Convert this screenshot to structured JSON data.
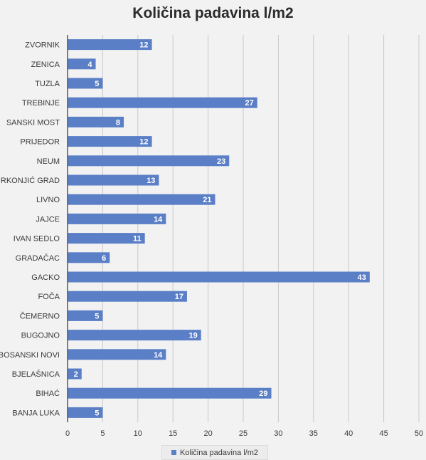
{
  "colors": {
    "bar": "#5b7fc7",
    "grid": "#c8c8c8",
    "axis": "#555555"
  },
  "chart_data": {
    "type": "bar",
    "orientation": "horizontal",
    "title": "Količina padavina l/m2",
    "categories": [
      "ZVORNIK",
      "ZENICA",
      "TUZLA",
      "TREBINJE",
      "SANSKI MOST",
      "PRIJEDOR",
      "NEUM",
      "MRKONJIĆ GRAD",
      "LIVNO",
      "JAJCE",
      "IVAN SEDLO",
      "GRADAČAC",
      "GACKO",
      "FOČA",
      "ČEMERNO",
      "BUGOJNO",
      "BOSANSKI NOVI",
      "BJELAŠNICA",
      "BIHAĆ",
      "BANJA LUKA"
    ],
    "series": [
      {
        "name": "Količina padavina l/m2",
        "values": [
          12,
          4,
          5,
          27,
          8,
          12,
          23,
          13,
          21,
          14,
          11,
          6,
          43,
          17,
          5,
          19,
          14,
          2,
          29,
          5
        ]
      }
    ],
    "xlim": [
      0,
      50
    ],
    "xticks": [
      0,
      5,
      10,
      15,
      20,
      25,
      30,
      35,
      40,
      45,
      50
    ],
    "grid": true,
    "data_labels": true,
    "legend": "bottom"
  }
}
